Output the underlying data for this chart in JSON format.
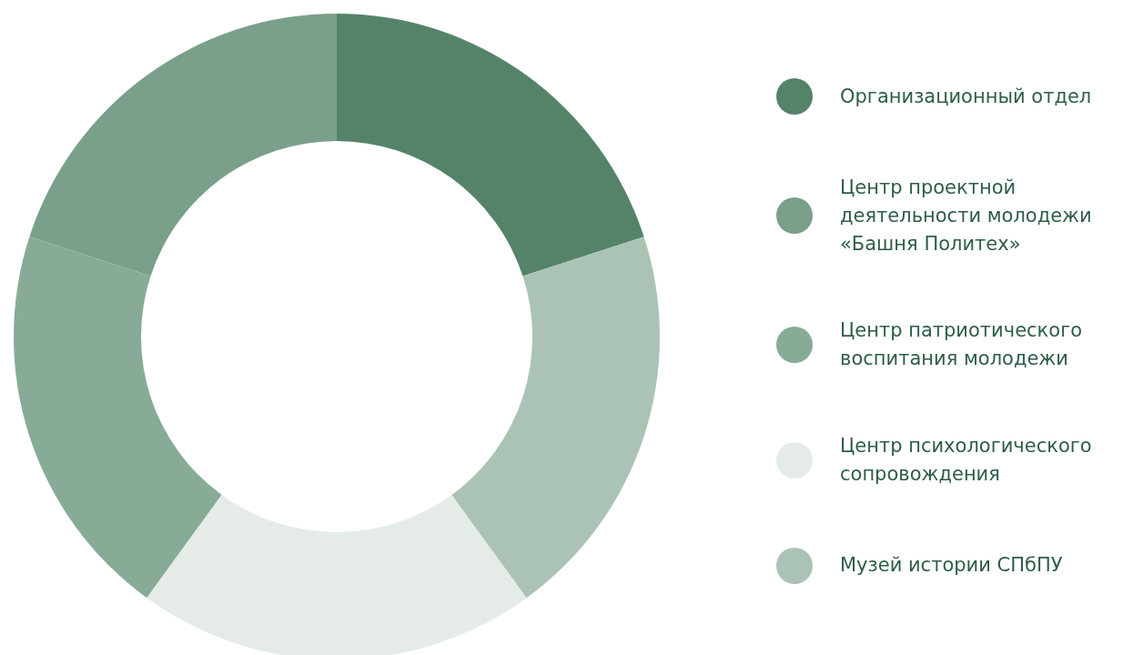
{
  "chart_data": {
    "type": "donut",
    "categories": [
      "Организационный отдел",
      "Центр проектной деятельности молодежи «Башня Политех»",
      "Центр патриотического воспитания молодежи",
      "Центр психологического сопровождения",
      "Музей истории СПбПУ"
    ],
    "values": [
      20,
      20,
      20,
      20,
      20
    ],
    "colors": [
      "#55836a",
      "#7a9f8a",
      "#88ab98",
      "#e5ece8",
      "#abc3b5"
    ],
    "legend": "right"
  }
}
